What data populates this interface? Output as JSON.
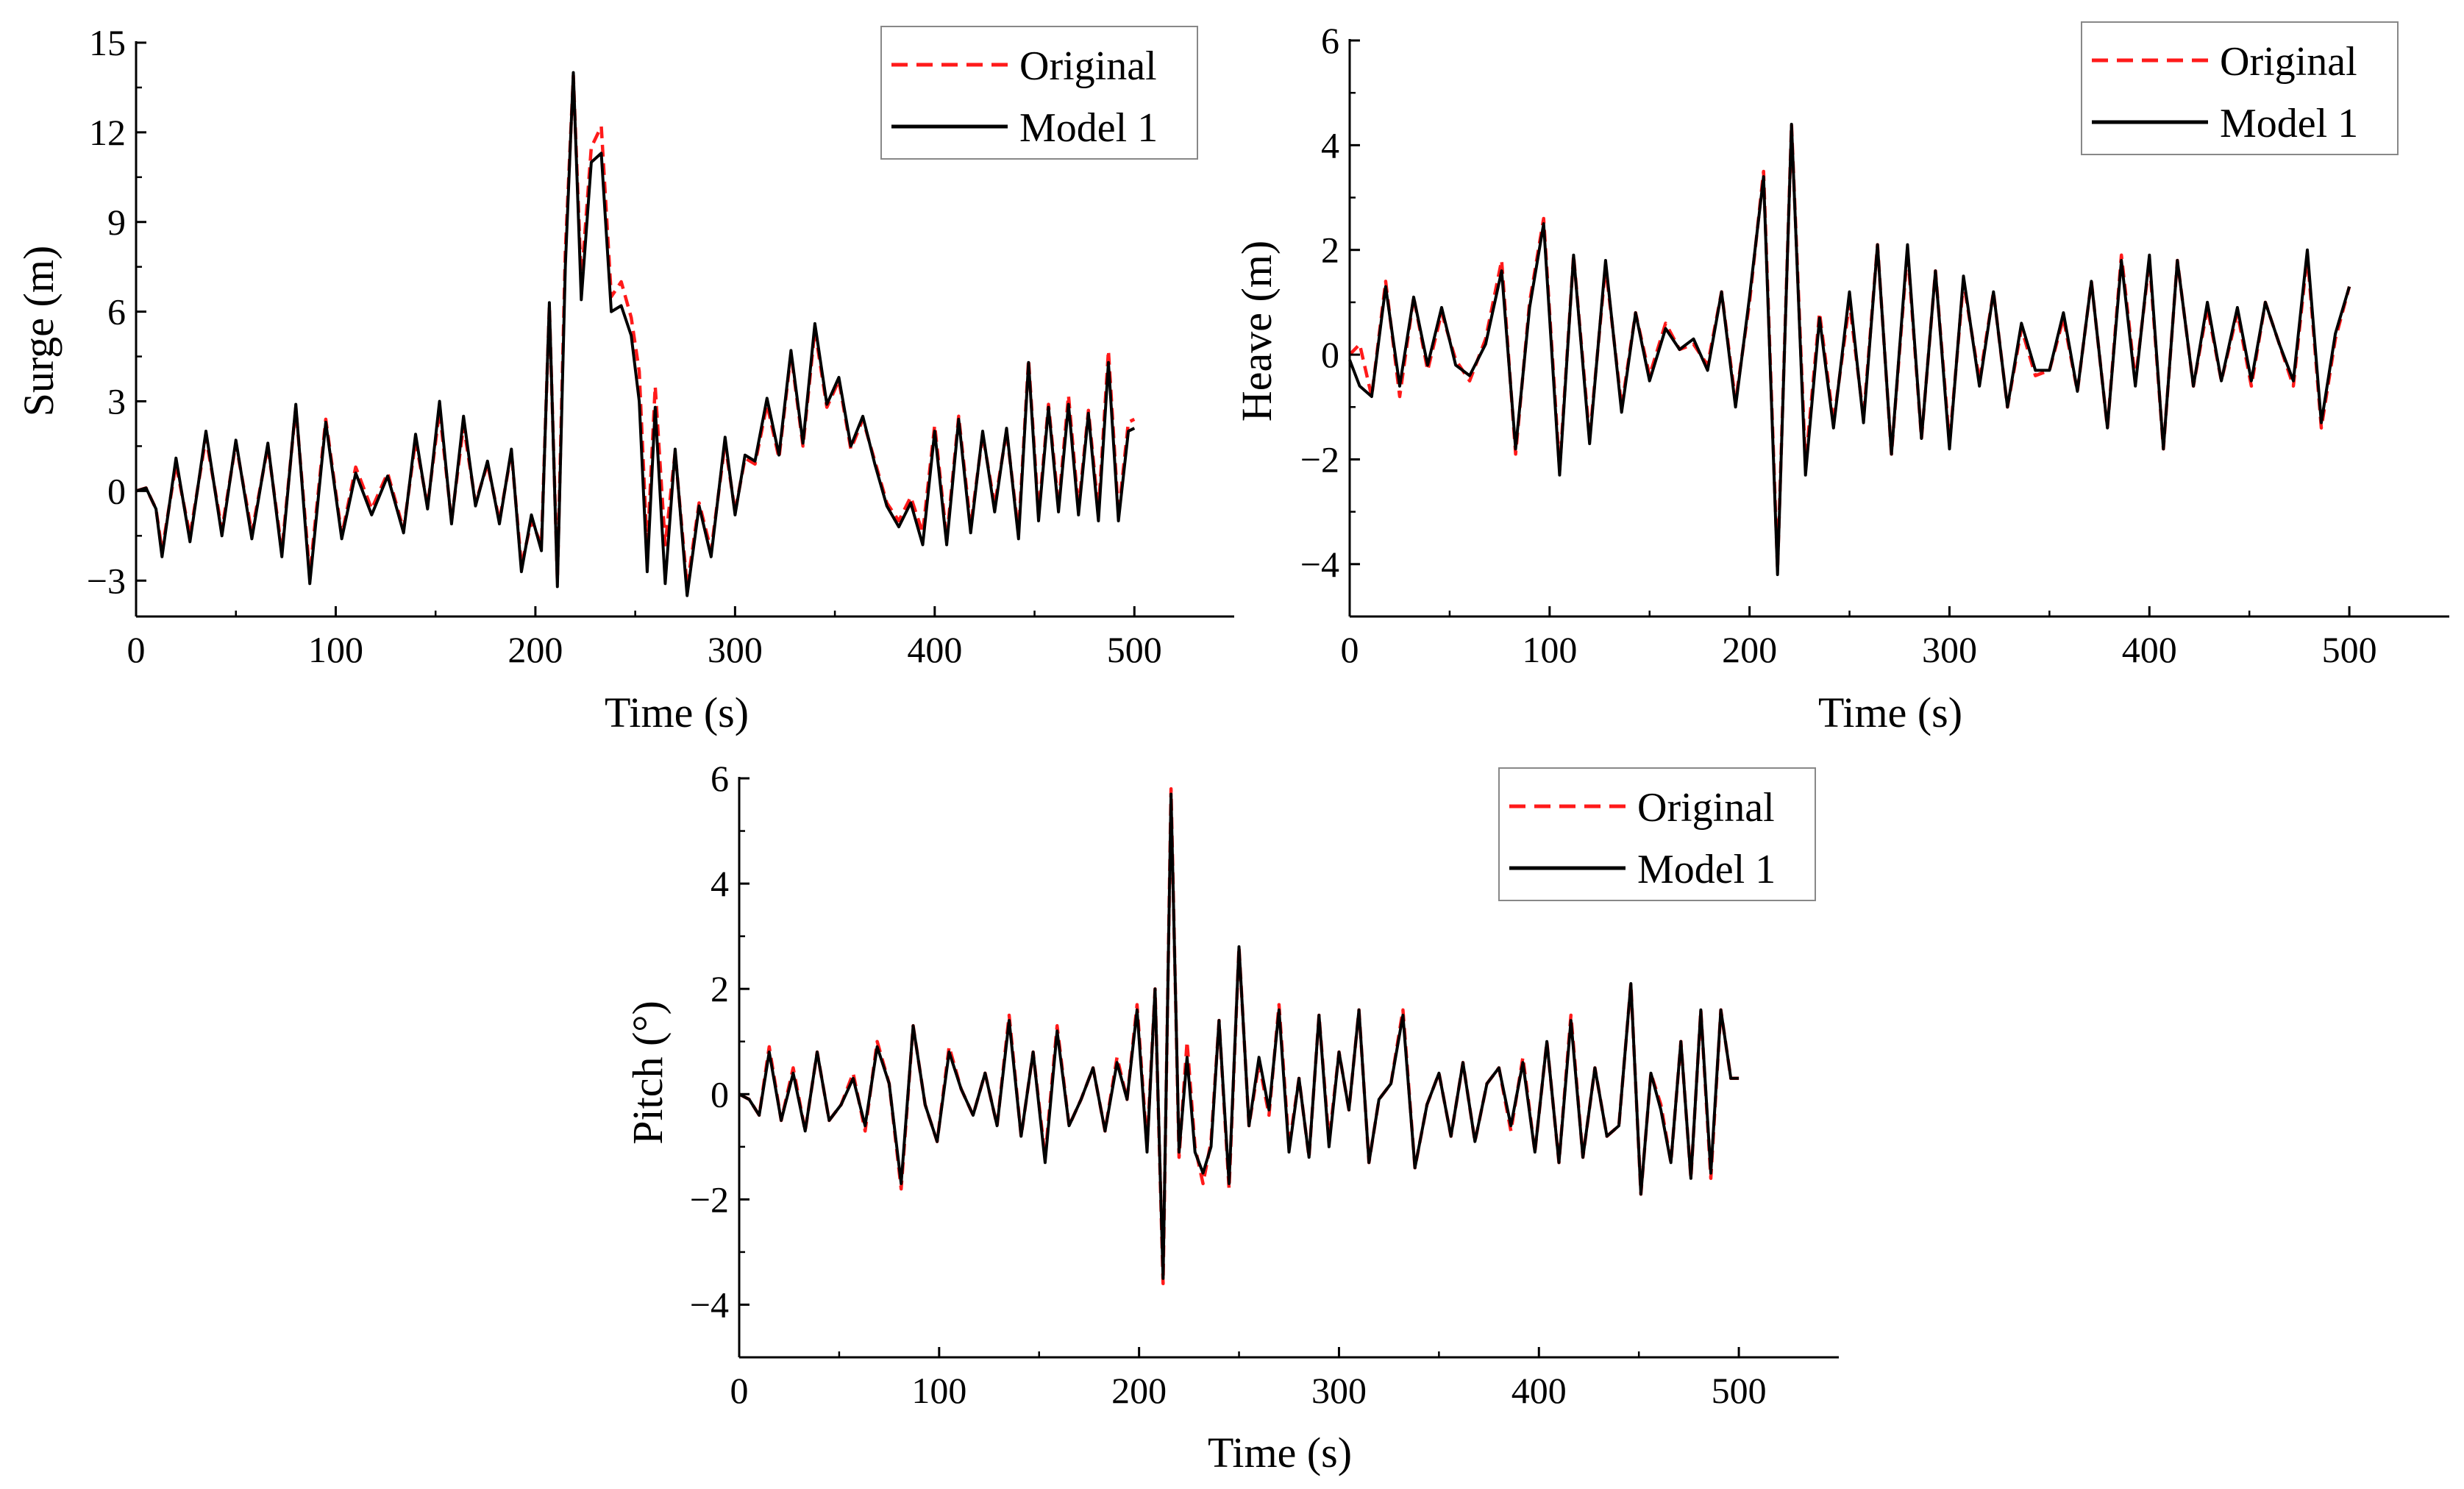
{
  "colors": {
    "original": "#ff1a1a",
    "model": "#000000",
    "axis": "#000000",
    "legend_border": "#888888"
  },
  "chart_data": [
    {
      "type": "line",
      "name": "surge",
      "xlabel": "Time (s)",
      "ylabel": "Surge (m)",
      "xlim": [
        0,
        550
      ],
      "ylim": [
        -4.2,
        15
      ],
      "xticks": [
        0,
        100,
        200,
        300,
        400,
        500
      ],
      "yticks": [
        -3,
        0,
        3,
        6,
        9,
        12,
        15
      ],
      "ytick_labels": [
        "−3",
        "0",
        "3",
        "6",
        "9",
        "12",
        "15"
      ],
      "legend_position": "top-right",
      "series": [
        {
          "name": "Original",
          "style": "dashed",
          "x": [
            0,
            5,
            10,
            13,
            20,
            27,
            35,
            43,
            50,
            58,
            66,
            73,
            80,
            87,
            95,
            103,
            110,
            118,
            126,
            134,
            140,
            146,
            152,
            158,
            164,
            170,
            176,
            182,
            188,
            193,
            198,
            203,
            207,
            211,
            215,
            219,
            223,
            228,
            233,
            238,
            243,
            248,
            252,
            256,
            260,
            265,
            270,
            276,
            282,
            288,
            295,
            300,
            305,
            310,
            316,
            322,
            328,
            334,
            340,
            346,
            352,
            358,
            364,
            370,
            376,
            382,
            388,
            394,
            400,
            406,
            412,
            418,
            424,
            430,
            436,
            442,
            447,
            452,
            457,
            462,
            467,
            472,
            477,
            482,
            487,
            492,
            497,
            500
          ],
          "y": [
            0,
            0.1,
            -0.6,
            -2.0,
            0.9,
            -1.5,
            1.8,
            -1.3,
            1.6,
            -1.4,
            1.5,
            -2.0,
            2.8,
            -2.8,
            2.4,
            -1.5,
            0.8,
            -0.6,
            0.6,
            -1.3,
            1.7,
            -0.5,
            2.7,
            -1.0,
            2.2,
            -0.4,
            0.9,
            -1.0,
            1.3,
            -2.5,
            -1.0,
            -1.8,
            6.2,
            -3.0,
            8.0,
            13.9,
            7.0,
            11.5,
            12.2,
            6.5,
            7.0,
            5.8,
            4.0,
            -2.0,
            3.5,
            -1.8,
            1.3,
            -3.2,
            -0.4,
            -2.0,
            1.6,
            -0.7,
            1.1,
            0.9,
            2.9,
            1.1,
            4.6,
            1.5,
            5.4,
            2.8,
            3.7,
            1.4,
            2.4,
            1.0,
            -0.4,
            -1.0,
            -0.2,
            -1.4,
            2.2,
            -1.6,
            2.5,
            -1.2,
            1.9,
            -0.5,
            2.0,
            -1.4,
            4.4,
            -0.8,
            2.9,
            -0.5,
            3.2,
            -0.6,
            2.7,
            -0.7,
            4.7,
            -0.8,
            2.3,
            2.4
          ]
        },
        {
          "name": "Model 1",
          "style": "solid",
          "x": [
            0,
            5,
            10,
            13,
            20,
            27,
            35,
            43,
            50,
            58,
            66,
            73,
            80,
            87,
            95,
            103,
            110,
            118,
            126,
            134,
            140,
            146,
            152,
            158,
            164,
            170,
            176,
            182,
            188,
            193,
            198,
            203,
            207,
            211,
            215,
            219,
            223,
            228,
            233,
            238,
            243,
            248,
            252,
            256,
            260,
            265,
            270,
            276,
            282,
            288,
            295,
            300,
            305,
            310,
            316,
            322,
            328,
            334,
            340,
            346,
            352,
            358,
            364,
            370,
            376,
            382,
            388,
            394,
            400,
            406,
            412,
            418,
            424,
            430,
            436,
            442,
            447,
            452,
            457,
            462,
            467,
            472,
            477,
            482,
            487,
            492,
            497,
            500
          ],
          "y": [
            0,
            0.1,
            -0.6,
            -2.2,
            1.1,
            -1.7,
            2.0,
            -1.5,
            1.7,
            -1.6,
            1.6,
            -2.2,
            2.9,
            -3.1,
            2.3,
            -1.6,
            0.6,
            -0.8,
            0.5,
            -1.4,
            1.9,
            -0.6,
            3.0,
            -1.1,
            2.5,
            -0.5,
            1.0,
            -1.1,
            1.4,
            -2.7,
            -0.8,
            -2.0,
            6.3,
            -3.2,
            7.5,
            14.0,
            6.4,
            11.0,
            11.3,
            6.0,
            6.2,
            5.2,
            3.0,
            -2.7,
            2.8,
            -3.1,
            1.4,
            -3.5,
            -0.5,
            -2.2,
            1.8,
            -0.8,
            1.2,
            1.0,
            3.1,
            1.2,
            4.7,
            1.6,
            5.6,
            2.9,
            3.8,
            1.5,
            2.5,
            0.9,
            -0.5,
            -1.2,
            -0.4,
            -1.8,
            2.0,
            -1.8,
            2.4,
            -1.4,
            2.0,
            -0.7,
            2.1,
            -1.6,
            4.3,
            -1.0,
            2.8,
            -0.7,
            2.9,
            -0.8,
            2.6,
            -1.0,
            4.3,
            -1.0,
            2.0,
            2.1
          ]
        }
      ]
    },
    {
      "type": "line",
      "name": "heave",
      "xlabel": "Time (s)",
      "ylabel": "Heave (m)",
      "xlim": [
        0,
        550
      ],
      "ylim": [
        -5,
        6
      ],
      "xticks": [
        0,
        100,
        200,
        300,
        400,
        500
      ],
      "yticks": [
        -4,
        -2,
        0,
        2,
        4,
        6
      ],
      "ytick_labels": [
        "−4",
        "−2",
        "0",
        "2",
        "4",
        "6"
      ],
      "legend_position": "top-right",
      "series": [
        {
          "name": "Original",
          "style": "dashed",
          "x": [
            0,
            5,
            11,
            18,
            25,
            32,
            39,
            46,
            53,
            60,
            68,
            76,
            83,
            90,
            97,
            105,
            112,
            120,
            128,
            136,
            143,
            150,
            158,
            165,
            172,
            179,
            186,
            193,
            200,
            207,
            214,
            221,
            228,
            235,
            242,
            250,
            257,
            264,
            271,
            279,
            286,
            293,
            300,
            307,
            315,
            322,
            329,
            336,
            343,
            350,
            357,
            364,
            371,
            379,
            386,
            393,
            400,
            407,
            414,
            422,
            429,
            436,
            444,
            451,
            458,
            465,
            472,
            479,
            486,
            493,
            500
          ],
          "y": [
            0,
            0.2,
            -0.8,
            1.4,
            -0.8,
            1.1,
            -0.3,
            0.8,
            -0.1,
            -0.5,
            0.3,
            1.8,
            -1.9,
            1.0,
            2.6,
            -2.2,
            1.9,
            -1.6,
            1.7,
            -1.0,
            0.8,
            -0.4,
            0.6,
            0.1,
            0.2,
            -0.2,
            1.2,
            -0.9,
            1.0,
            3.5,
            -4.1,
            4.4,
            -2.1,
            0.8,
            -1.3,
            1.0,
            -1.2,
            2.1,
            -1.9,
            2.0,
            -1.6,
            1.6,
            -1.7,
            1.4,
            -0.5,
            1.2,
            -1.0,
            0.5,
            -0.4,
            -0.3,
            0.7,
            -0.7,
            1.4,
            -1.4,
            1.9,
            -0.5,
            1.8,
            -1.8,
            1.8,
            -0.6,
            0.9,
            -0.5,
            0.8,
            -0.6,
            1.0,
            0.2,
            -0.6,
            1.9,
            -1.4,
            0.3,
            1.3
          ]
        },
        {
          "name": "Model 1",
          "style": "solid",
          "x": [
            0,
            5,
            11,
            18,
            25,
            32,
            39,
            46,
            53,
            60,
            68,
            76,
            83,
            90,
            97,
            105,
            112,
            120,
            128,
            136,
            143,
            150,
            158,
            165,
            172,
            179,
            186,
            193,
            200,
            207,
            214,
            221,
            228,
            235,
            242,
            250,
            257,
            264,
            271,
            279,
            286,
            293,
            300,
            307,
            315,
            322,
            329,
            336,
            343,
            350,
            357,
            364,
            371,
            379,
            386,
            393,
            400,
            407,
            414,
            422,
            429,
            436,
            444,
            451,
            458,
            465,
            472,
            479,
            486,
            493,
            500
          ],
          "y": [
            -0.1,
            -0.6,
            -0.8,
            1.3,
            -0.6,
            1.1,
            -0.2,
            0.9,
            -0.2,
            -0.4,
            0.2,
            1.6,
            -1.8,
            0.9,
            2.5,
            -2.3,
            1.9,
            -1.7,
            1.8,
            -1.1,
            0.8,
            -0.5,
            0.5,
            0.1,
            0.3,
            -0.3,
            1.2,
            -1.0,
            1.1,
            3.4,
            -4.2,
            4.4,
            -2.3,
            0.7,
            -1.4,
            1.2,
            -1.3,
            2.1,
            -1.9,
            2.1,
            -1.6,
            1.6,
            -1.8,
            1.5,
            -0.6,
            1.2,
            -1.0,
            0.6,
            -0.3,
            -0.3,
            0.8,
            -0.7,
            1.4,
            -1.4,
            1.8,
            -0.6,
            1.9,
            -1.8,
            1.8,
            -0.6,
            1.0,
            -0.5,
            0.9,
            -0.5,
            1.0,
            0.2,
            -0.5,
            2.0,
            -1.3,
            0.4,
            1.3
          ]
        }
      ]
    },
    {
      "type": "line",
      "name": "pitch",
      "xlabel": "Time (s)",
      "ylabel": "Pitch (°)",
      "xlim": [
        0,
        550
      ],
      "ylim": [
        -5,
        6
      ],
      "xticks": [
        0,
        100,
        200,
        300,
        400,
        500
      ],
      "yticks": [
        -4,
        -2,
        0,
        2,
        4,
        6
      ],
      "ytick_labels": [
        "−4",
        "−2",
        "0",
        "2",
        "4",
        "6"
      ],
      "legend_position": "top-right",
      "series": [
        {
          "name": "Original",
          "style": "dashed",
          "x": [
            0,
            5,
            10,
            15,
            21,
            27,
            33,
            39,
            45,
            51,
            57,
            63,
            69,
            75,
            81,
            87,
            93,
            99,
            105,
            111,
            117,
            123,
            129,
            135,
            141,
            147,
            153,
            159,
            165,
            171,
            177,
            183,
            189,
            194,
            199,
            204,
            208,
            212,
            216,
            220,
            224,
            228,
            232,
            236,
            240,
            245,
            250,
            255,
            260,
            265,
            270,
            275,
            280,
            285,
            290,
            295,
            300,
            305,
            310,
            315,
            320,
            326,
            332,
            338,
            344,
            350,
            356,
            362,
            368,
            374,
            380,
            386,
            392,
            398,
            404,
            410,
            416,
            422,
            428,
            434,
            440,
            446,
            451,
            456,
            461,
            466,
            471,
            476,
            481,
            486,
            491,
            496,
            500
          ],
          "y": [
            0,
            -0.1,
            -0.4,
            0.9,
            -0.5,
            0.5,
            -0.7,
            0.8,
            -0.5,
            -0.2,
            0.4,
            -0.7,
            1.0,
            0.2,
            -1.8,
            1.3,
            -0.2,
            -0.9,
            0.9,
            0.1,
            -0.4,
            0.4,
            -0.6,
            1.5,
            -0.8,
            0.8,
            -1.2,
            1.3,
            -0.6,
            -0.1,
            0.5,
            -0.7,
            0.7,
            -0.1,
            1.7,
            -1.0,
            2.0,
            -3.6,
            5.8,
            -1.2,
            1.0,
            -1.0,
            -1.7,
            -0.9,
            1.4,
            -1.8,
            2.8,
            -0.6,
            0.6,
            -0.4,
            1.7,
            -1.0,
            0.3,
            -1.2,
            1.5,
            -0.9,
            0.8,
            -0.3,
            1.6,
            -1.3,
            -0.1,
            0.2,
            1.6,
            -1.4,
            -0.2,
            0.4,
            -0.8,
            0.6,
            -0.9,
            0.2,
            0.5,
            -0.7,
            0.7,
            -1.1,
            1.0,
            -1.3,
            1.5,
            -1.2,
            0.5,
            -0.8,
            -0.6,
            2.1,
            -1.9,
            0.4,
            -0.2,
            -1.3,
            1.0,
            -1.6,
            1.6,
            -1.6,
            1.6,
            0.3,
            0.3
          ]
        },
        {
          "name": "Model 1",
          "style": "solid",
          "x": [
            0,
            5,
            10,
            15,
            21,
            27,
            33,
            39,
            45,
            51,
            57,
            63,
            69,
            75,
            81,
            87,
            93,
            99,
            105,
            111,
            117,
            123,
            129,
            135,
            141,
            147,
            153,
            159,
            165,
            171,
            177,
            183,
            189,
            194,
            199,
            204,
            208,
            212,
            216,
            220,
            224,
            228,
            232,
            236,
            240,
            245,
            250,
            255,
            260,
            265,
            270,
            275,
            280,
            285,
            290,
            295,
            300,
            305,
            310,
            315,
            320,
            326,
            332,
            338,
            344,
            350,
            356,
            362,
            368,
            374,
            380,
            386,
            392,
            398,
            404,
            410,
            416,
            422,
            428,
            434,
            440,
            446,
            451,
            456,
            461,
            466,
            471,
            476,
            481,
            486,
            491,
            496,
            500
          ],
          "y": [
            0,
            -0.1,
            -0.4,
            0.8,
            -0.5,
            0.4,
            -0.7,
            0.8,
            -0.5,
            -0.2,
            0.3,
            -0.6,
            0.9,
            0.2,
            -1.7,
            1.3,
            -0.2,
            -0.9,
            0.8,
            0.1,
            -0.4,
            0.4,
            -0.6,
            1.4,
            -0.8,
            0.8,
            -1.3,
            1.2,
            -0.6,
            -0.1,
            0.5,
            -0.7,
            0.6,
            -0.1,
            1.6,
            -1.1,
            2.0,
            -3.5,
            5.7,
            -1.1,
            0.7,
            -1.1,
            -1.5,
            -1.0,
            1.4,
            -1.7,
            2.8,
            -0.6,
            0.7,
            -0.3,
            1.6,
            -1.1,
            0.3,
            -1.2,
            1.5,
            -1.0,
            0.8,
            -0.3,
            1.6,
            -1.3,
            -0.1,
            0.2,
            1.5,
            -1.4,
            -0.2,
            0.4,
            -0.8,
            0.6,
            -0.9,
            0.2,
            0.5,
            -0.6,
            0.6,
            -1.1,
            1.0,
            -1.3,
            1.4,
            -1.2,
            0.5,
            -0.8,
            -0.6,
            2.1,
            -1.9,
            0.4,
            -0.3,
            -1.3,
            1.0,
            -1.6,
            1.6,
            -1.5,
            1.6,
            0.3,
            0.3
          ]
        }
      ]
    }
  ]
}
